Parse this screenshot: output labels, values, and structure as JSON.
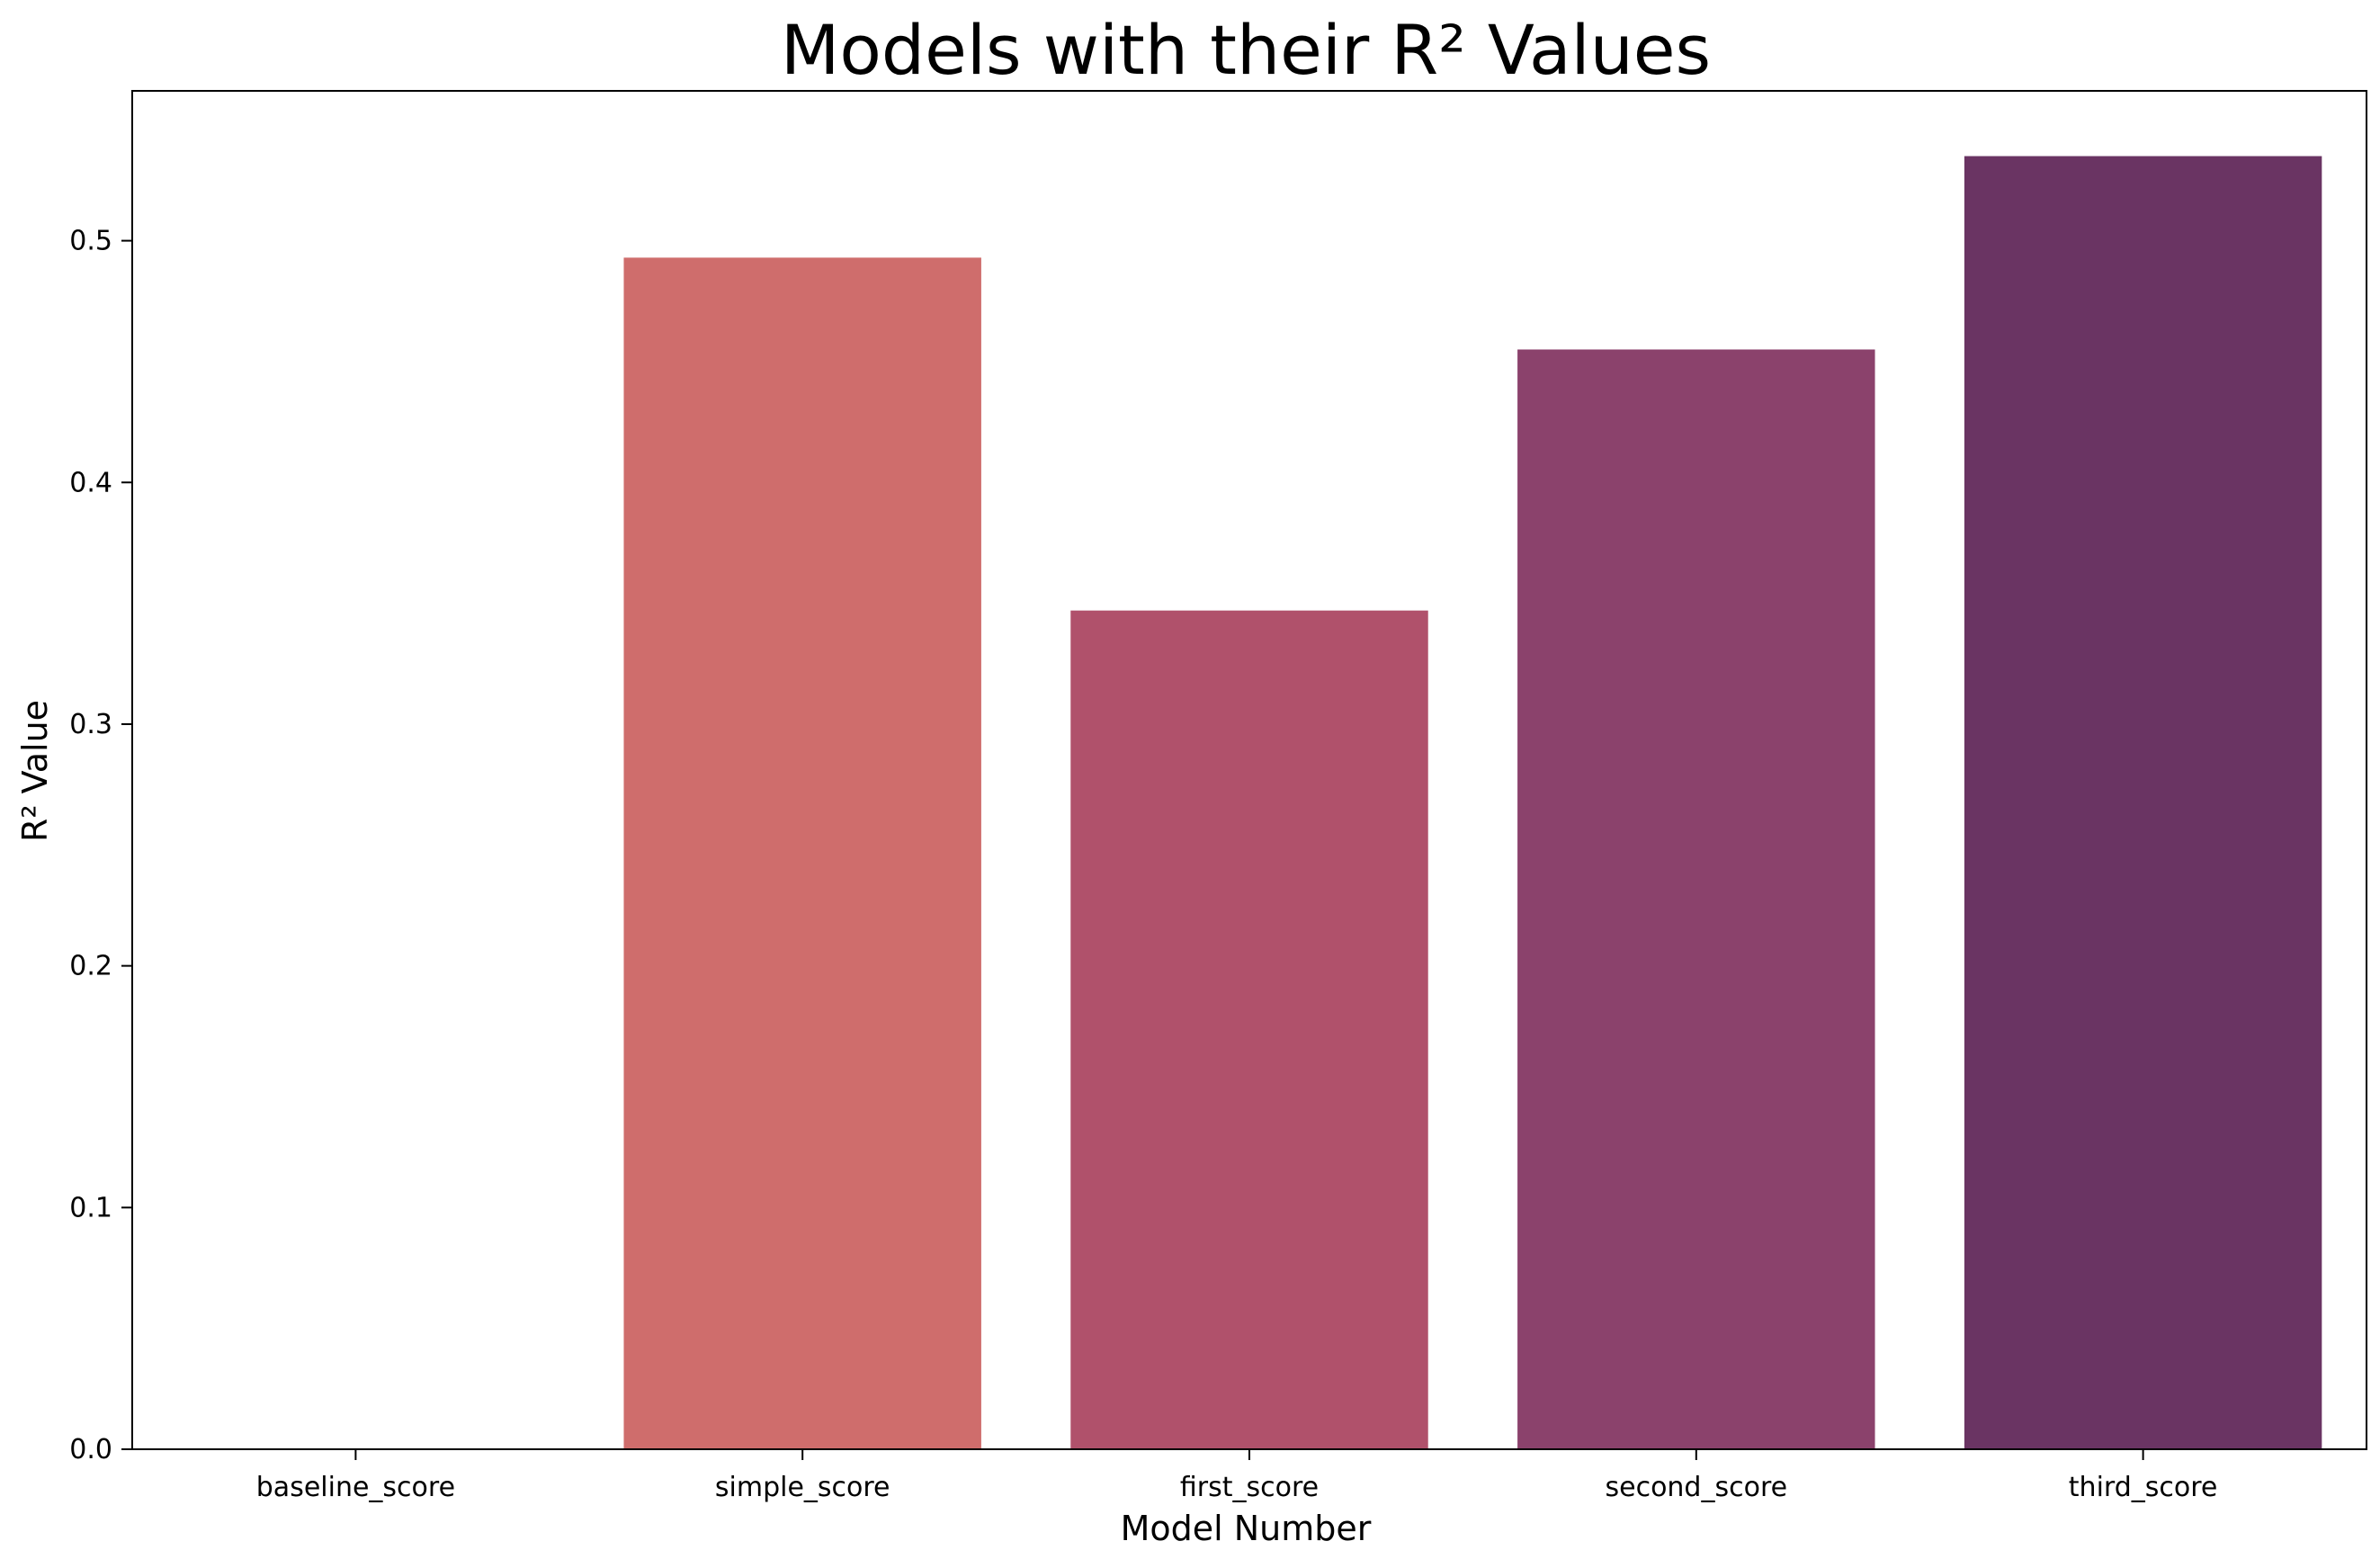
{
  "chart_data": {
    "type": "bar",
    "title": "Models with their R² Values",
    "xlabel": "Model Number",
    "ylabel": "R² Value",
    "categories": [
      "baseline_score",
      "simple_score",
      "first_score",
      "second_score",
      "third_score"
    ],
    "values": [
      0.0,
      0.493,
      0.347,
      0.455,
      0.535
    ],
    "colors": [
      "#e8816e",
      "#cf6d6c",
      "#b0516b",
      "#8b426c",
      "#6a3463"
    ],
    "ylim": [
      0,
      0.562
    ],
    "yticks": [
      0.0,
      0.1,
      0.2,
      0.3,
      0.4,
      0.5
    ],
    "ytick_labels": [
      "0.0",
      "0.1",
      "0.2",
      "0.3",
      "0.4",
      "0.5"
    ],
    "grid": false,
    "legend": "none"
  }
}
